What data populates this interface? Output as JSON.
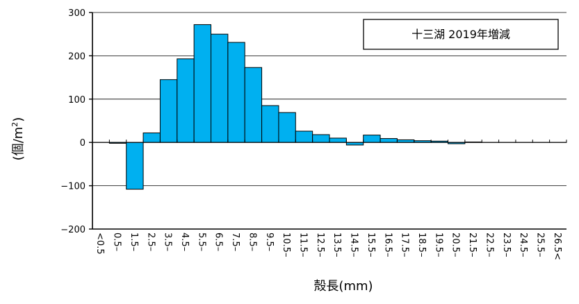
{
  "chart_data": {
    "type": "bar",
    "title": "十三湖 2019年増減",
    "xlabel": "殻長(mm)",
    "ylabel": "(個/m",
    "ylabel_sup": "2",
    "ylabel_close": ")",
    "ylim": [
      -200,
      300
    ],
    "yticks": [
      300,
      200,
      100,
      0,
      -100,
      -200
    ],
    "ytick_labels": [
      "300",
      "200",
      "100",
      "0",
      "−100",
      "−200"
    ],
    "grid": true,
    "legend_position": "top-right",
    "bar_color": "#00B0F0",
    "categories": [
      "<0.5",
      "0.5–",
      "1.5–",
      "2.5–",
      "3.5–",
      "4.5–",
      "5.5–",
      "6.5–",
      "7.5–",
      "8.5–",
      "9.5–",
      "10.5–",
      "11.5–",
      "12.5–",
      "13.5–",
      "14.5–",
      "15.5–",
      "16.5–",
      "17.5–",
      "18.5–",
      "19.5–",
      "20.5–",
      "21.5–",
      "22.5–",
      "23.5–",
      "24.5–",
      "25.5–",
      "26.5<"
    ],
    "values": [
      0,
      -2,
      -108,
      22,
      145,
      193,
      272,
      250,
      231,
      173,
      85,
      69,
      26,
      18,
      10,
      -6,
      17,
      9,
      6,
      4,
      3,
      -3,
      1,
      0,
      0,
      0,
      0,
      0
    ]
  }
}
